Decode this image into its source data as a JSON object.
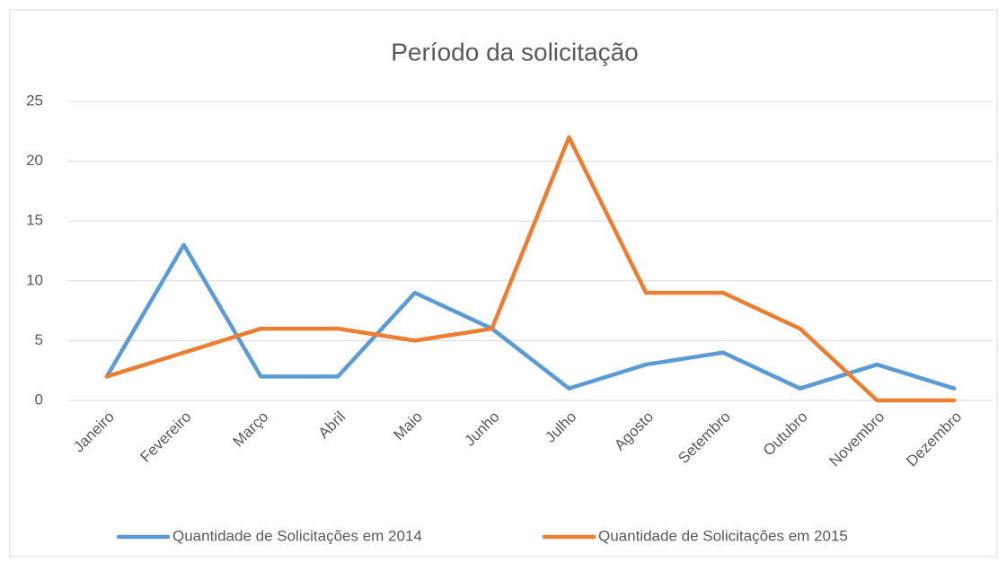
{
  "chart_data": {
    "type": "line",
    "title": "Período da solicitação",
    "categories": [
      "Janeiro",
      "Fevereiro",
      "Março",
      "Abril",
      "Maio",
      "Junho",
      "Julho",
      "Agosto",
      "Setembro",
      "Outubro",
      "Novembro",
      "Dezembro"
    ],
    "series": [
      {
        "name": "Quantidade de Solicitações em 2014",
        "color": "#5b9bd5",
        "values": [
          2,
          13,
          2,
          2,
          9,
          6,
          1,
          3,
          4,
          1,
          3,
          1
        ]
      },
      {
        "name": "Quantidade de Solicitações em 2015",
        "color": "#ed7d31",
        "values": [
          2,
          4,
          6,
          6,
          5,
          6,
          22,
          9,
          9,
          6,
          0,
          0
        ]
      }
    ],
    "ylim": [
      0,
      25
    ],
    "yticks": [
      0,
      5,
      10,
      15,
      20,
      25
    ],
    "grid": true,
    "legend": "bottom"
  }
}
